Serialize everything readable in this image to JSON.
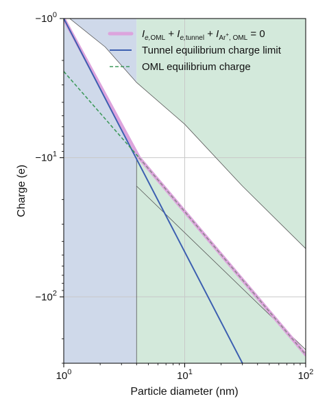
{
  "chart_data": {
    "type": "line",
    "xlabel": "Particle diameter (nm)",
    "ylabel": "Charge (e)",
    "xscale": "log",
    "yscale": "log",
    "xlim": [
      1,
      100
    ],
    "ylim": [
      -1,
      -300
    ],
    "x_ticks": [
      {
        "value": 1,
        "label_base": "10",
        "label_exp": "0"
      },
      {
        "value": 10,
        "label_base": "10",
        "label_exp": "1"
      },
      {
        "value": 100,
        "label_base": "10",
        "label_exp": "2"
      }
    ],
    "y_ticks": [
      {
        "value": -1,
        "label_base": "−10",
        "label_exp": "0"
      },
      {
        "value": -10,
        "label_base": "−10",
        "label_exp": "1"
      },
      {
        "value": -100,
        "label_base": "−10",
        "label_exp": "2"
      }
    ],
    "grid": true,
    "legend_position": "top-right",
    "colors": {
      "blue_region": "#cfd9ea",
      "green_region": "#d3e9db",
      "pink": "#dda4dd",
      "blue": "#3c5fb0",
      "green": "#3f9a5c",
      "gray": "#8a8a8a",
      "grid": "#c8c8c8"
    },
    "legend": [
      {
        "style": "pink-thick",
        "parts": [
          {
            "t": "I",
            "italic": true
          },
          {
            "t": "e,",
            "sub": true,
            "italic": true
          },
          {
            "t": "OML",
            "sub": true
          },
          {
            "t": " + "
          },
          {
            "t": "I",
            "italic": true
          },
          {
            "t": "e,",
            "sub": true,
            "italic": true
          },
          {
            "t": "tunnel",
            "sub": true
          },
          {
            "t": " + "
          },
          {
            "t": "I",
            "italic": true
          },
          {
            "t": "Ar",
            "sub": true
          },
          {
            "t": "+",
            "subsup": true
          },
          {
            "t": ", OML",
            "sub": true
          },
          {
            "t": " = 0"
          }
        ]
      },
      {
        "style": "blue-solid",
        "label": "Tunnel equilibrium charge limit"
      },
      {
        "style": "green-dashed",
        "label": "OML equilibrium charge"
      }
    ],
    "regions": [
      {
        "name": "tunnel-region",
        "color": "blue_region",
        "x": [
          1,
          4
        ]
      },
      {
        "name": "oml-region",
        "color": "green_region",
        "x": [
          4,
          100
        ]
      }
    ],
    "series": [
      {
        "name": "Tunnel equilibrium charge limit",
        "x": [
          1,
          30
        ],
        "y": [
          -1,
          -300
        ]
      },
      {
        "name": "OML equilibrium charge",
        "x": [
          1,
          4.2
        ],
        "y": [
          -2.4,
          -10
        ]
      },
      {
        "x": [
          1,
          4.2,
          100
        ],
        "y": [
          -1,
          -10,
          -260
        ]
      }
    ],
    "bounds": [
      {
        "x": [
          1.12,
          2.2,
          4,
          10,
          30,
          100
        ],
        "y": [
          -1,
          -1.6,
          -2.88,
          -5.75,
          -16,
          -45
        ]
      },
      {
        "x": [
          4,
          100
        ],
        "y": [
          -16,
          -240
        ]
      },
      {
        "x": [
          4,
          4
        ],
        "y": [
          -10,
          -300
        ]
      }
    ]
  }
}
